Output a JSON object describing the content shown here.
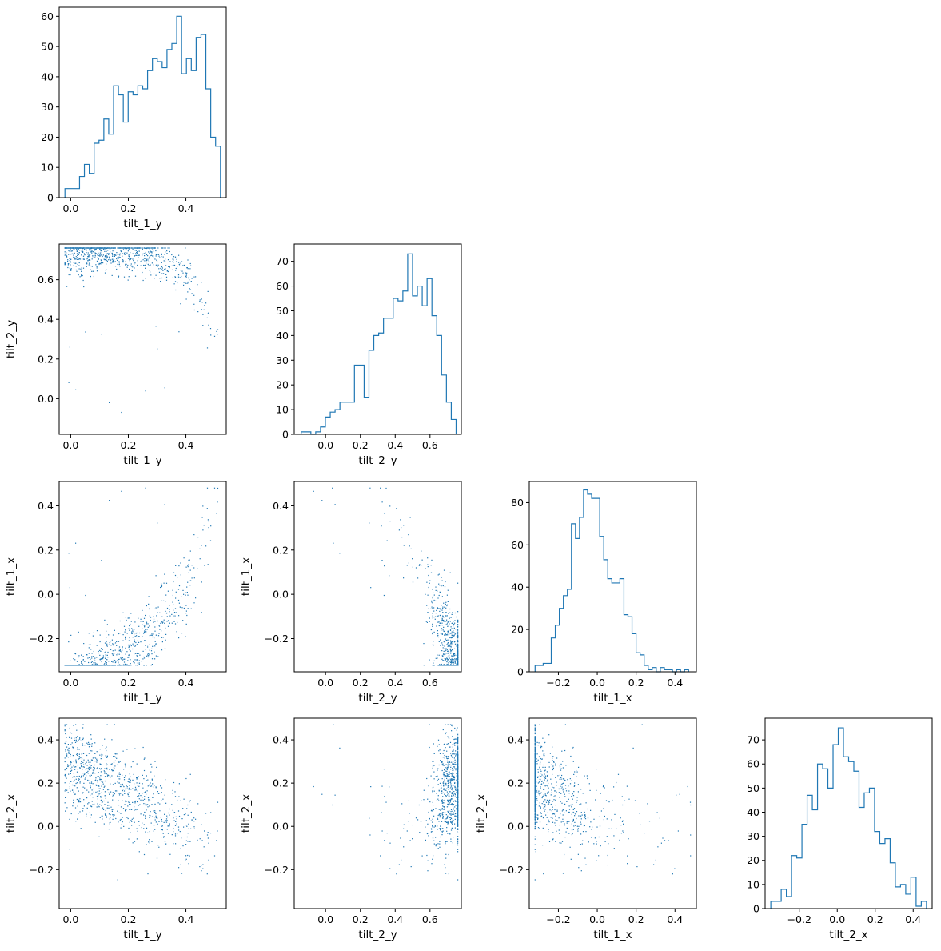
{
  "colors": {
    "series": "#1f77b4",
    "axes": "#000000",
    "background": "#ffffff"
  },
  "chart_data": {
    "type": "corner",
    "variables": [
      "tilt_1_y",
      "tilt_2_y",
      "tilt_1_x",
      "tilt_2_x"
    ],
    "variable_labels": {
      "tilt_1_y": "tilt_1_y",
      "tilt_2_y": "tilt_2_y",
      "tilt_1_x": "tilt_1_x",
      "tilt_2_x": "tilt_2_x"
    },
    "ranges": {
      "tilt_1_y": [
        -0.04,
        0.54
      ],
      "tilt_2_y": [
        -0.18,
        0.78
      ],
      "tilt_1_x": [
        -0.35,
        0.51
      ],
      "tilt_2_x": [
        -0.38,
        0.5
      ]
    },
    "ticks": {
      "tilt_1_y": {
        "values": [
          0.0,
          0.2,
          0.4
        ],
        "labels": [
          "0.0",
          "0.2",
          "0.4"
        ]
      },
      "tilt_2_y": {
        "values": [
          0.0,
          0.2,
          0.4,
          0.6
        ],
        "labels": [
          "0.0",
          "0.2",
          "0.4",
          "0.6"
        ]
      },
      "tilt_1_x": {
        "values": [
          -0.2,
          0.0,
          0.2,
          0.4
        ],
        "labels": [
          "−0.2",
          "0.0",
          "0.2",
          "0.4"
        ]
      },
      "tilt_2_x": {
        "values": [
          -0.2,
          0.0,
          0.2,
          0.4
        ],
        "labels": [
          "−0.2",
          "0.0",
          "0.2",
          "0.4"
        ]
      }
    },
    "scatter_sample_size": 900,
    "histograms": [
      {
        "variable": "tilt_1_y",
        "bin_range": [
          -0.02,
          0.52
        ],
        "counts": [
          3,
          3,
          3,
          7,
          11,
          8,
          18,
          19,
          26,
          21,
          37,
          34,
          25,
          35,
          34,
          37,
          36,
          42,
          46,
          45,
          43,
          49,
          51,
          60,
          41,
          46,
          42,
          53,
          54,
          36,
          20,
          17
        ],
        "ylim": [
          0,
          63
        ],
        "yticks": {
          "values": [
            0,
            10,
            20,
            30,
            40,
            50,
            60
          ],
          "labels": [
            "0",
            "10",
            "20",
            "30",
            "40",
            "50",
            "60"
          ]
        }
      },
      {
        "variable": "tilt_2_y",
        "bin_range": [
          -0.14,
          0.75
        ],
        "counts": [
          1,
          1,
          0,
          1,
          3,
          7,
          9,
          10,
          13,
          13,
          13,
          28,
          28,
          15,
          34,
          40,
          41,
          47,
          47,
          55,
          54,
          58,
          73,
          56,
          60,
          52,
          63,
          48,
          40,
          24,
          13,
          6
        ],
        "ylim": [
          0,
          77
        ],
        "yticks": {
          "values": [
            0,
            10,
            20,
            30,
            40,
            50,
            60,
            70
          ],
          "labels": [
            "0",
            "10",
            "20",
            "30",
            "40",
            "50",
            "60",
            "70"
          ]
        }
      },
      {
        "variable": "tilt_1_x",
        "bin_range": [
          -0.32,
          0.47
        ],
        "counts": [
          3,
          3,
          4,
          4,
          16,
          22,
          30,
          36,
          39,
          70,
          63,
          73,
          86,
          84,
          82,
          82,
          64,
          53,
          44,
          42,
          42,
          44,
          27,
          26,
          18,
          9,
          8,
          3,
          1,
          2,
          0,
          2,
          1,
          1,
          0,
          1,
          0,
          1
        ],
        "ylim": [
          0,
          90
        ],
        "yticks": {
          "values": [
            0,
            20,
            40,
            60,
            80
          ],
          "labels": [
            "0",
            "20",
            "40",
            "60",
            "80"
          ]
        }
      },
      {
        "variable": "tilt_2_x",
        "bin_range": [
          -0.35,
          0.47
        ],
        "counts": [
          3,
          3,
          8,
          5,
          22,
          21,
          35,
          47,
          41,
          60,
          58,
          50,
          68,
          75,
          63,
          61,
          57,
          42,
          48,
          50,
          32,
          27,
          29,
          19,
          9,
          10,
          6,
          13,
          1,
          3
        ],
        "ylim": [
          0,
          79
        ],
        "yticks": {
          "values": [
            0,
            10,
            20,
            30,
            40,
            50,
            60,
            70
          ],
          "labels": [
            "0",
            "10",
            "20",
            "30",
            "40",
            "50",
            "60",
            "70"
          ]
        }
      }
    ],
    "scatter_panels": [
      {
        "x": "tilt_1_y",
        "y": "tilt_2_y",
        "correlation": "negative, curved",
        "y_ticks": [
          "0.0",
          "0.2",
          "0.4",
          "0.6"
        ]
      },
      {
        "x": "tilt_1_y",
        "y": "tilt_1_x",
        "correlation": "weak positive"
      },
      {
        "x": "tilt_2_y",
        "y": "tilt_1_x",
        "correlation": "strong negative"
      },
      {
        "x": "tilt_1_y",
        "y": "tilt_2_x",
        "correlation": "strong negative"
      },
      {
        "x": "tilt_2_y",
        "y": "tilt_2_x",
        "correlation": "weak positive"
      },
      {
        "x": "tilt_1_x",
        "y": "tilt_2_x",
        "correlation": "weak negative"
      }
    ]
  }
}
